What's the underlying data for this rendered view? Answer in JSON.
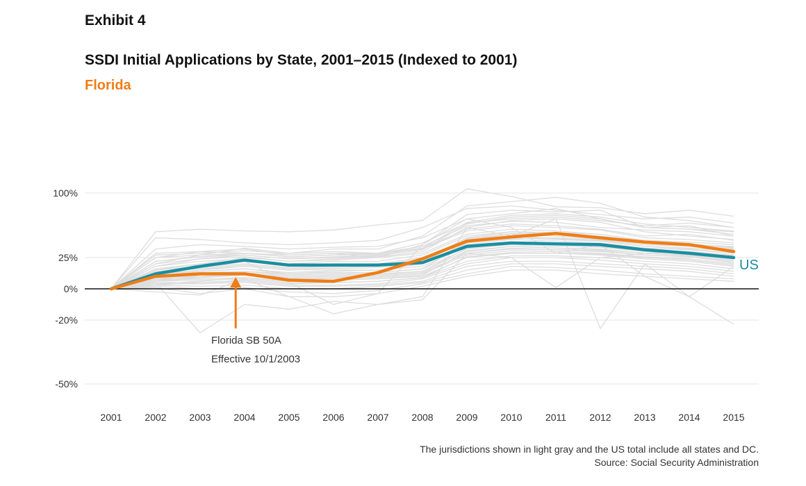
{
  "exhibit_label": "Exhibit 4",
  "title": "SSDI Initial Applications by State, 2001–2015 (Indexed to 2001)",
  "subtitle": "Florida",
  "footnote": {
    "line1": "The jurisdictions shown in light gray and the US total include all states and DC.",
    "line2": "Source: Social Security Administration"
  },
  "annotation": {
    "line1": "Florida SB 50A",
    "line2": "Effective 10/1/2003",
    "year": 2003.8
  },
  "colors": {
    "florida": "#ef7d16",
    "us": "#1b8ea0",
    "states": "#dddddd",
    "zero_line": "#111111",
    "grid": "#e6e6e6"
  },
  "chart_data": {
    "type": "line",
    "title": "SSDI Initial Applications by State, 2001–2015 (Indexed to 2001)",
    "subtitle": "Florida",
    "x": [
      2001,
      2002,
      2003,
      2004,
      2005,
      2006,
      2007,
      2008,
      2009,
      2010,
      2011,
      2012,
      2013,
      2014,
      2015
    ],
    "y_ticks": [
      {
        "value": 100,
        "label": "100%"
      },
      {
        "value": 25,
        "label": "25%"
      },
      {
        "value": 0,
        "label": "0%"
      },
      {
        "value": -20,
        "label": "-20%"
      },
      {
        "value": -50,
        "label": "-50%"
      }
    ],
    "ylim": [
      -52,
      112
    ],
    "grid": true,
    "highlight_series": [
      {
        "name": "Florida",
        "color": "#ef7d16",
        "values": [
          0,
          10,
          12,
          12,
          7,
          6,
          13,
          24,
          44,
          49,
          53,
          48,
          43,
          40,
          32
        ]
      },
      {
        "name": "US",
        "color": "#1b8ea0",
        "values": [
          0,
          12,
          18,
          23,
          19,
          19,
          19,
          21,
          38,
          42,
          41,
          40,
          34,
          30,
          25
        ]
      }
    ],
    "series_labels": {
      "US": "US"
    },
    "background_series": [
      [
        0,
        55,
        58,
        56,
        55,
        57,
        63,
        68,
        105,
        96,
        84,
        83,
        76,
        80,
        73
      ],
      [
        0,
        48,
        46,
        42,
        40,
        42,
        45,
        60,
        82,
        85,
        80,
        75,
        70,
        72,
        65
      ],
      [
        0,
        35,
        40,
        38,
        35,
        37,
        38,
        48,
        70,
        76,
        82,
        70,
        60,
        58,
        55
      ],
      [
        0,
        30,
        32,
        30,
        28,
        30,
        30,
        42,
        65,
        70,
        72,
        68,
        62,
        65,
        60
      ],
      [
        0,
        28,
        30,
        33,
        30,
        32,
        30,
        38,
        62,
        67,
        66,
        60,
        57,
        55,
        50
      ],
      [
        0,
        25,
        28,
        30,
        26,
        28,
        29,
        36,
        58,
        64,
        62,
        58,
        50,
        52,
        45
      ],
      [
        0,
        22,
        26,
        28,
        24,
        25,
        27,
        35,
        56,
        62,
        60,
        57,
        48,
        46,
        42
      ],
      [
        0,
        20,
        24,
        26,
        22,
        23,
        25,
        30,
        52,
        58,
        56,
        52,
        45,
        43,
        40
      ],
      [
        0,
        18,
        22,
        24,
        20,
        22,
        22,
        28,
        50,
        55,
        52,
        48,
        43,
        40,
        38
      ],
      [
        0,
        16,
        20,
        22,
        18,
        20,
        20,
        25,
        46,
        52,
        50,
        46,
        40,
        38,
        35
      ],
      [
        0,
        15,
        18,
        20,
        17,
        18,
        19,
        22,
        44,
        50,
        47,
        44,
        38,
        36,
        33
      ],
      [
        0,
        14,
        16,
        18,
        15,
        16,
        17,
        20,
        40,
        46,
        44,
        42,
        36,
        34,
        30
      ],
      [
        0,
        12,
        14,
        16,
        13,
        15,
        15,
        18,
        38,
        43,
        42,
        40,
        34,
        32,
        28
      ],
      [
        0,
        11,
        13,
        14,
        12,
        13,
        13,
        16,
        35,
        40,
        38,
        37,
        32,
        30,
        26
      ],
      [
        0,
        10,
        12,
        13,
        10,
        11,
        12,
        14,
        33,
        38,
        36,
        35,
        30,
        28,
        24
      ],
      [
        0,
        9,
        10,
        12,
        9,
        10,
        10,
        13,
        30,
        36,
        34,
        33,
        28,
        26,
        22
      ],
      [
        0,
        8,
        9,
        11,
        8,
        8,
        9,
        12,
        28,
        33,
        32,
        30,
        26,
        24,
        20
      ],
      [
        0,
        7,
        8,
        9,
        6,
        7,
        8,
        10,
        25,
        30,
        30,
        28,
        24,
        22,
        18
      ],
      [
        0,
        6,
        7,
        8,
        5,
        5,
        6,
        9,
        22,
        27,
        27,
        25,
        22,
        20,
        16
      ],
      [
        0,
        5,
        5,
        6,
        3,
        3,
        4,
        8,
        20,
        25,
        25,
        23,
        20,
        18,
        14
      ],
      [
        0,
        4,
        4,
        5,
        2,
        2,
        3,
        6,
        18,
        22,
        22,
        20,
        18,
        16,
        12
      ],
      [
        0,
        3,
        2,
        3,
        0,
        0,
        2,
        5,
        15,
        20,
        20,
        18,
        16,
        14,
        10
      ],
      [
        0,
        2,
        0,
        1,
        -2,
        -3,
        -1,
        4,
        12,
        18,
        17,
        15,
        12,
        10,
        8
      ],
      [
        0,
        1,
        -3,
        0,
        -5,
        -5,
        -3,
        2,
        10,
        15,
        15,
        12,
        10,
        8,
        6
      ],
      [
        0,
        -2,
        -4,
        8,
        -5,
        -16,
        -10,
        -7,
        30,
        25,
        1,
        25,
        30,
        32,
        26
      ],
      [
        0,
        5,
        -26,
        -10,
        -13,
        -8,
        -10,
        -5,
        60,
        50,
        70,
        -24,
        20,
        -5,
        -22
      ],
      [
        0,
        10,
        20,
        22,
        5,
        -10,
        -3,
        40,
        70,
        60,
        30,
        40,
        10,
        -5,
        18
      ],
      [
        0,
        25,
        32,
        35,
        28,
        30,
        25,
        40,
        75,
        80,
        78,
        80,
        60,
        62,
        50
      ],
      [
        0,
        20,
        28,
        36,
        30,
        35,
        35,
        50,
        85,
        90,
        95,
        88,
        72,
        68,
        60
      ],
      [
        0,
        15,
        20,
        25,
        22,
        24,
        26,
        32,
        60,
        68,
        70,
        66,
        55,
        50,
        46
      ],
      [
        0,
        12,
        15,
        18,
        15,
        17,
        18,
        23,
        48,
        55,
        54,
        52,
        44,
        40,
        36
      ],
      [
        0,
        8,
        11,
        14,
        11,
        12,
        13,
        16,
        42,
        48,
        46,
        44,
        38,
        35,
        30
      ],
      [
        0,
        6,
        9,
        12,
        9,
        10,
        11,
        14,
        36,
        42,
        40,
        38,
        33,
        30,
        27
      ],
      [
        0,
        4,
        6,
        9,
        6,
        7,
        8,
        11,
        32,
        38,
        36,
        34,
        30,
        27,
        23
      ],
      [
        0,
        18,
        24,
        28,
        24,
        26,
        28,
        34,
        64,
        72,
        74,
        70,
        60,
        58,
        52
      ],
      [
        0,
        22,
        26,
        30,
        26,
        28,
        30,
        36,
        66,
        74,
        76,
        72,
        64,
        60,
        56
      ],
      [
        0,
        10,
        14,
        16,
        12,
        14,
        15,
        20,
        42,
        47,
        48,
        45,
        40,
        38,
        34
      ],
      [
        0,
        13,
        17,
        19,
        16,
        18,
        19,
        24,
        47,
        53,
        52,
        50,
        43,
        41,
        37
      ],
      [
        0,
        7,
        10,
        11,
        8,
        9,
        10,
        13,
        30,
        35,
        34,
        32,
        28,
        26,
        21
      ],
      [
        0,
        3,
        5,
        7,
        4,
        5,
        6,
        9,
        26,
        31,
        30,
        29,
        25,
        23,
        19
      ]
    ]
  }
}
